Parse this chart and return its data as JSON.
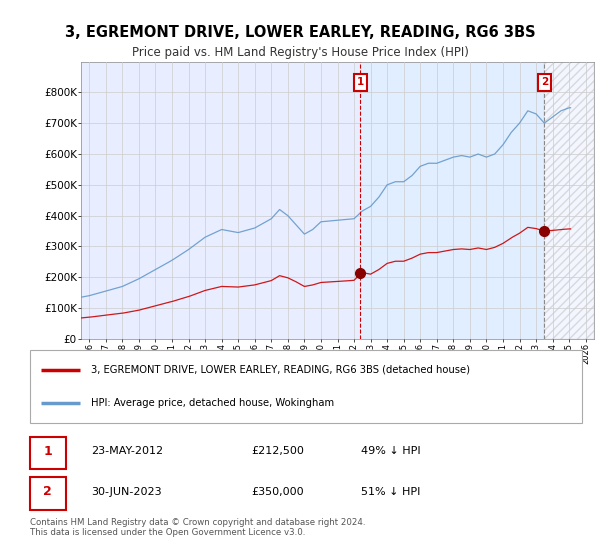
{
  "title": "3, EGREMONT DRIVE, LOWER EARLEY, READING, RG6 3BS",
  "subtitle": "Price paid vs. HM Land Registry's House Price Index (HPI)",
  "ylim": [
    0,
    900000
  ],
  "yticks": [
    0,
    100000,
    200000,
    300000,
    400000,
    500000,
    600000,
    700000,
    800000
  ],
  "ytick_labels": [
    "£0",
    "£100K",
    "£200K",
    "£300K",
    "£400K",
    "£500K",
    "£600K",
    "£700K",
    "£800K"
  ],
  "hpi_color": "#6699cc",
  "price_color": "#cc0000",
  "grid_color": "#cccccc",
  "plot_bg_color": "#e8eeff",
  "shade_color": "#ddeeff",
  "sale1_date": "23-MAY-2012",
  "sale1_price": "£212,500",
  "sale1_pct": "49% ↓ HPI",
  "sale2_date": "30-JUN-2023",
  "sale2_price": "£350,000",
  "sale2_pct": "51% ↓ HPI",
  "legend_line1": "3, EGREMONT DRIVE, LOWER EARLEY, READING, RG6 3BS (detached house)",
  "legend_line2": "HPI: Average price, detached house, Wokingham",
  "footer": "Contains HM Land Registry data © Crown copyright and database right 2024.\nThis data is licensed under the Open Government Licence v3.0.",
  "sale1_year": 2012.38,
  "sale2_year": 2023.5,
  "sale1_price_val": 212500,
  "sale2_price_val": 350000,
  "xlim_start": 1995.5,
  "xlim_end": 2026.5
}
